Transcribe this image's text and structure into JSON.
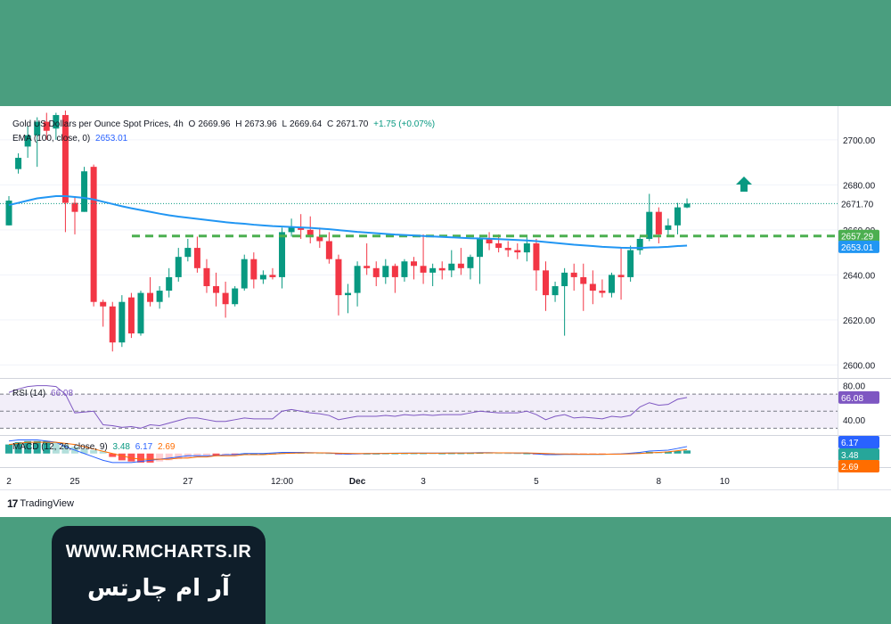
{
  "legend": {
    "symbol": "Gold US Dollars per Ounce Spot Prices, 4h",
    "o_label": "O",
    "o": "2669.96",
    "h_label": "H",
    "h": "2673.96",
    "l_label": "L",
    "l": "2669.64",
    "c_label": "C",
    "c": "2671.70",
    "change": "+1.75 (+0.07%)",
    "ema_label": "EMA (100, close, 0)",
    "ema": "2653.01"
  },
  "rsi_legend": {
    "label": "RSI (14)",
    "value": "66.08"
  },
  "macd_legend": {
    "label": "MACD (12, 26, close, 9)",
    "v1": "3.48",
    "v2": "6.17",
    "v3": "2.69"
  },
  "tags": {
    "last": "2671.70",
    "level": "2657.29",
    "ema": "2653.01",
    "rsi": "66.08",
    "macd1": "6.17",
    "macd2": "3.48",
    "macd3": "2.69"
  },
  "branding": {
    "tv": "TradingView",
    "url": "WWW.RMCHARTS.IR",
    "name": "آر ام چارتس"
  },
  "colors": {
    "up": "#089981",
    "down": "#f23645",
    "ema": "#2196f3",
    "level": "#4caf50",
    "rsi": "#7e57c2",
    "arrow": "#089981",
    "frame": "#4a9e7f",
    "brand_box": "#0f1e2a"
  },
  "chart_data": {
    "type": "candlestick",
    "title": "Gold US Dollars per Ounce Spot Prices, 4h",
    "ylim": [
      2597,
      2713
    ],
    "yticks": [
      2600,
      2620,
      2640,
      2660,
      2680,
      2700
    ],
    "ytick_labels": [
      "2600.00",
      "2620.00",
      "2640.00",
      "2660.00",
      "2680.00",
      "2700.00"
    ],
    "xtick_labels": [
      "2",
      "25",
      "27",
      "12:00",
      "Dec",
      "3",
      "5",
      "8",
      "10"
    ],
    "candles": [
      {
        "o": 2662,
        "h": 2675,
        "l": 2662,
        "c": 2673
      },
      {
        "o": 2687,
        "h": 2694,
        "l": 2685,
        "c": 2692
      },
      {
        "o": 2697,
        "h": 2706,
        "l": 2692,
        "c": 2702
      },
      {
        "o": 2702,
        "h": 2710,
        "l": 2688,
        "c": 2708
      },
      {
        "o": 2708,
        "h": 2712,
        "l": 2700,
        "c": 2704
      },
      {
        "o": 2705,
        "h": 2712,
        "l": 2700,
        "c": 2711
      },
      {
        "o": 2711,
        "h": 2713,
        "l": 2659,
        "c": 2672
      },
      {
        "o": 2672,
        "h": 2675,
        "l": 2658,
        "c": 2668
      },
      {
        "o": 2668,
        "h": 2688,
        "l": 2668,
        "c": 2686
      },
      {
        "o": 2688,
        "h": 2689,
        "l": 2626,
        "c": 2628
      },
      {
        "o": 2628,
        "h": 2629,
        "l": 2617,
        "c": 2626
      },
      {
        "o": 2626,
        "h": 2628,
        "l": 2606,
        "c": 2610
      },
      {
        "o": 2610,
        "h": 2631,
        "l": 2608,
        "c": 2628
      },
      {
        "o": 2630,
        "h": 2632,
        "l": 2612,
        "c": 2614
      },
      {
        "o": 2614,
        "h": 2633,
        "l": 2613,
        "c": 2632
      },
      {
        "o": 2632,
        "h": 2639,
        "l": 2626,
        "c": 2628
      },
      {
        "o": 2628,
        "h": 2635,
        "l": 2625,
        "c": 2633
      },
      {
        "o": 2633,
        "h": 2643,
        "l": 2630,
        "c": 2639
      },
      {
        "o": 2639,
        "h": 2652,
        "l": 2637,
        "c": 2648
      },
      {
        "o": 2648,
        "h": 2656,
        "l": 2646,
        "c": 2652
      },
      {
        "o": 2652,
        "h": 2657,
        "l": 2641,
        "c": 2643
      },
      {
        "o": 2643,
        "h": 2647,
        "l": 2632,
        "c": 2635
      },
      {
        "o": 2635,
        "h": 2641,
        "l": 2626,
        "c": 2632
      },
      {
        "o": 2632,
        "h": 2637,
        "l": 2621,
        "c": 2627
      },
      {
        "o": 2627,
        "h": 2635,
        "l": 2626,
        "c": 2634
      },
      {
        "o": 2634,
        "h": 2649,
        "l": 2633,
        "c": 2647
      },
      {
        "o": 2647,
        "h": 2650,
        "l": 2634,
        "c": 2638
      },
      {
        "o": 2638,
        "h": 2642,
        "l": 2636,
        "c": 2640
      },
      {
        "o": 2640,
        "h": 2643,
        "l": 2638,
        "c": 2639
      },
      {
        "o": 2639,
        "h": 2661,
        "l": 2634,
        "c": 2659
      },
      {
        "o": 2659,
        "h": 2665,
        "l": 2657,
        "c": 2661
      },
      {
        "o": 2661,
        "h": 2667,
        "l": 2656,
        "c": 2660
      },
      {
        "o": 2660,
        "h": 2666,
        "l": 2654,
        "c": 2657
      },
      {
        "o": 2657,
        "h": 2661,
        "l": 2652,
        "c": 2655
      },
      {
        "o": 2655,
        "h": 2659,
        "l": 2645,
        "c": 2647
      },
      {
        "o": 2647,
        "h": 2649,
        "l": 2622,
        "c": 2631
      },
      {
        "o": 2631,
        "h": 2636,
        "l": 2623,
        "c": 2632
      },
      {
        "o": 2632,
        "h": 2646,
        "l": 2626,
        "c": 2644
      },
      {
        "o": 2644,
        "h": 2654,
        "l": 2640,
        "c": 2643
      },
      {
        "o": 2643,
        "h": 2646,
        "l": 2635,
        "c": 2639
      },
      {
        "o": 2639,
        "h": 2647,
        "l": 2636,
        "c": 2644
      },
      {
        "o": 2644,
        "h": 2645,
        "l": 2632,
        "c": 2639
      },
      {
        "o": 2639,
        "h": 2647,
        "l": 2637,
        "c": 2646
      },
      {
        "o": 2646,
        "h": 2648,
        "l": 2638,
        "c": 2644
      },
      {
        "o": 2644,
        "h": 2658,
        "l": 2636,
        "c": 2641
      },
      {
        "o": 2641,
        "h": 2645,
        "l": 2635,
        "c": 2643
      },
      {
        "o": 2643,
        "h": 2646,
        "l": 2638,
        "c": 2642
      },
      {
        "o": 2642,
        "h": 2651,
        "l": 2639,
        "c": 2645
      },
      {
        "o": 2645,
        "h": 2652,
        "l": 2640,
        "c": 2643
      },
      {
        "o": 2643,
        "h": 2649,
        "l": 2638,
        "c": 2648
      },
      {
        "o": 2648,
        "h": 2657,
        "l": 2636,
        "c": 2656
      },
      {
        "o": 2656,
        "h": 2659,
        "l": 2651,
        "c": 2654
      },
      {
        "o": 2654,
        "h": 2658,
        "l": 2650,
        "c": 2652
      },
      {
        "o": 2652,
        "h": 2655,
        "l": 2648,
        "c": 2651
      },
      {
        "o": 2651,
        "h": 2654,
        "l": 2647,
        "c": 2650
      },
      {
        "o": 2650,
        "h": 2657,
        "l": 2646,
        "c": 2654
      },
      {
        "o": 2654,
        "h": 2656,
        "l": 2633,
        "c": 2642
      },
      {
        "o": 2642,
        "h": 2646,
        "l": 2624,
        "c": 2631
      },
      {
        "o": 2631,
        "h": 2637,
        "l": 2628,
        "c": 2635
      },
      {
        "o": 2635,
        "h": 2643,
        "l": 2613,
        "c": 2641
      },
      {
        "o": 2641,
        "h": 2645,
        "l": 2633,
        "c": 2639
      },
      {
        "o": 2639,
        "h": 2645,
        "l": 2624,
        "c": 2636
      },
      {
        "o": 2636,
        "h": 2642,
        "l": 2627,
        "c": 2633
      },
      {
        "o": 2633,
        "h": 2638,
        "l": 2630,
        "c": 2632
      },
      {
        "o": 2632,
        "h": 2641,
        "l": 2630,
        "c": 2640
      },
      {
        "o": 2640,
        "h": 2652,
        "l": 2629,
        "c": 2639
      },
      {
        "o": 2639,
        "h": 2653,
        "l": 2637,
        "c": 2651
      },
      {
        "o": 2651,
        "h": 2657,
        "l": 2649,
        "c": 2656
      },
      {
        "o": 2656,
        "h": 2676,
        "l": 2655,
        "c": 2668
      },
      {
        "o": 2668,
        "h": 2670,
        "l": 2654,
        "c": 2658
      },
      {
        "o": 2660,
        "h": 2665,
        "l": 2657,
        "c": 2662
      },
      {
        "o": 2662,
        "h": 2672,
        "l": 2658,
        "c": 2670
      },
      {
        "o": 2669.96,
        "h": 2673.96,
        "l": 2669.64,
        "c": 2671.7
      }
    ],
    "ema_series": [
      2671,
      2672,
      2673,
      2674,
      2674.5,
      2675,
      2675,
      2674.6,
      2674.2,
      2673.5,
      2672.5,
      2671.5,
      2670.5,
      2669.6,
      2668.8,
      2668,
      2667.2,
      2666.5,
      2665.9,
      2665.4,
      2664.9,
      2664.4,
      2663.9,
      2663.4,
      2663,
      2662.7,
      2662.3,
      2662,
      2661.7,
      2661.5,
      2661.3,
      2661.1,
      2660.9,
      2660.6,
      2660.3,
      2659.9,
      2659.5,
      2659.1,
      2658.8,
      2658.5,
      2658.2,
      2657.9,
      2657.7,
      2657.5,
      2657.3,
      2657.1,
      2656.9,
      2656.7,
      2656.5,
      2656.3,
      2656.2,
      2656.1,
      2655.9,
      2655.7,
      2655.5,
      2655.3,
      2655,
      2654.6,
      2654.2,
      2653.8,
      2653.4,
      2653.1,
      2652.8,
      2652.5,
      2652.3,
      2652.1,
      2652,
      2652,
      2652.2,
      2652.3,
      2652.5,
      2652.8,
      2653.01
    ],
    "level": 2657.29,
    "rsi": {
      "ylim": [
        22,
        88
      ],
      "levels": [
        70,
        50,
        30
      ],
      "tick_labels": [
        "80.00",
        "40.00"
      ],
      "tick_values": [
        80,
        40
      ],
      "values": [
        72,
        76,
        79,
        80,
        80,
        79,
        70,
        48,
        49,
        50,
        34,
        33,
        31,
        32,
        30,
        34,
        33,
        36,
        39,
        42,
        42,
        40,
        38,
        38,
        40,
        42,
        41,
        41,
        41,
        50,
        52,
        50,
        48,
        47,
        45,
        40,
        42,
        44,
        44,
        44,
        45,
        44,
        46,
        45,
        46,
        45,
        46,
        46,
        46,
        48,
        50,
        49,
        48,
        48,
        48,
        50,
        46,
        40,
        44,
        46,
        42,
        43,
        42,
        41,
        44,
        43,
        45,
        55,
        60,
        57,
        58,
        64,
        66.08
      ]
    },
    "macd": {
      "ylim": [
        -12,
        14
      ],
      "hist": [
        8,
        10,
        11,
        11,
        11,
        10,
        8,
        6,
        4,
        3,
        2,
        -3,
        -6,
        -7,
        -8,
        -8,
        -7,
        -6,
        -5,
        -4,
        -3,
        -2,
        -2,
        -1,
        -1,
        0,
        0,
        0,
        0,
        0.5,
        0.8,
        0.8,
        0.6,
        0.4,
        0.2,
        -0.3,
        -0.4,
        -0.2,
        0,
        0,
        0.2,
        0.2,
        0.3,
        0.3,
        0.3,
        0.2,
        0.2,
        0.3,
        0.3,
        0.4,
        0.6,
        0.5,
        0.4,
        0.3,
        0.2,
        0.2,
        -0.3,
        -0.8,
        -0.7,
        -0.4,
        -0.5,
        -0.5,
        -0.5,
        -0.5,
        -0.3,
        -0.2,
        0.2,
        0.6,
        1.5,
        1.4,
        1.6,
        2.3,
        2.69
      ],
      "macd_line": [
        11,
        12,
        12,
        12,
        11,
        10,
        6,
        3,
        0,
        -3,
        -6,
        -8,
        -8,
        -8,
        -7,
        -6,
        -5,
        -4,
        -3,
        -2,
        -2,
        -2,
        -2,
        -1,
        -1,
        0,
        0,
        0,
        0.5,
        1,
        1,
        1,
        0.8,
        0.6,
        0.4,
        -0.2,
        -0.5,
        -0.3,
        0,
        0,
        0.2,
        0.3,
        0.4,
        0.4,
        0.4,
        0.4,
        0.4,
        0.5,
        0.5,
        0.6,
        0.8,
        0.8,
        0.6,
        0.5,
        0.4,
        0.4,
        -0.3,
        -1,
        -1,
        -0.8,
        -0.8,
        -0.8,
        -0.8,
        -0.8,
        -0.5,
        -0.3,
        0.3,
        1,
        2.2,
        2.6,
        3,
        4.5,
        6.17
      ],
      "signal_line": [
        8,
        9,
        10,
        10,
        10,
        10,
        9,
        8,
        6,
        4,
        2,
        0,
        -2,
        -4,
        -5,
        -5,
        -5,
        -5,
        -4,
        -4,
        -3,
        -3,
        -2,
        -2,
        -2,
        -1,
        -1,
        -1,
        -0.5,
        0,
        0.3,
        0.5,
        0.6,
        0.6,
        0.5,
        0.3,
        0.1,
        0,
        0,
        0,
        0.1,
        0.2,
        0.2,
        0.3,
        0.3,
        0.3,
        0.3,
        0.4,
        0.4,
        0.4,
        0.5,
        0.6,
        0.6,
        0.6,
        0.5,
        0.5,
        0.3,
        0,
        -0.3,
        -0.4,
        -0.5,
        -0.6,
        -0.6,
        -0.6,
        -0.6,
        -0.5,
        -0.3,
        0,
        0.6,
        1,
        1.5,
        2.5,
        3.48
      ]
    }
  }
}
